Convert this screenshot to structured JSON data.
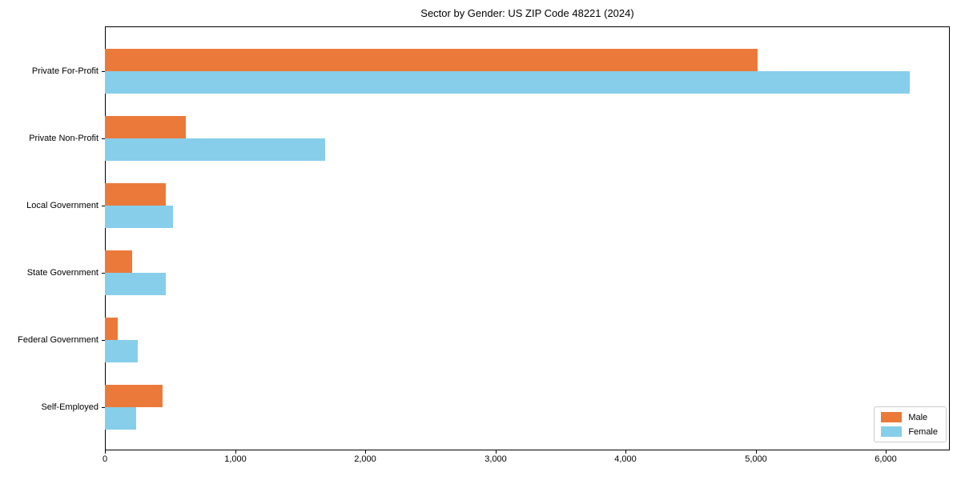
{
  "chart_data": {
    "type": "bar",
    "orientation": "horizontal",
    "title": "Sector by Gender: US ZIP Code 48221 (2024)",
    "categories": [
      "Private For-Profit",
      "Private Non-Profit",
      "Local Government",
      "State Government",
      "Federal Government",
      "Self-Employed"
    ],
    "series": [
      {
        "name": "Male",
        "color": "#eb7a3a",
        "values": [
          5015,
          620,
          465,
          210,
          100,
          445
        ]
      },
      {
        "name": "Female",
        "color": "#87ceeb",
        "values": [
          6180,
          1690,
          520,
          465,
          250,
          240
        ]
      }
    ],
    "xlabel": "",
    "ylabel": "",
    "xlim": [
      0,
      6490
    ],
    "xticks": [
      0,
      1000,
      2000,
      3000,
      4000,
      5000,
      6000
    ],
    "xtick_labels": [
      "0",
      "1,000",
      "2,000",
      "3,000",
      "4,000",
      "5,000",
      "6,000"
    ],
    "grid": false,
    "legend_position": "lower right"
  }
}
